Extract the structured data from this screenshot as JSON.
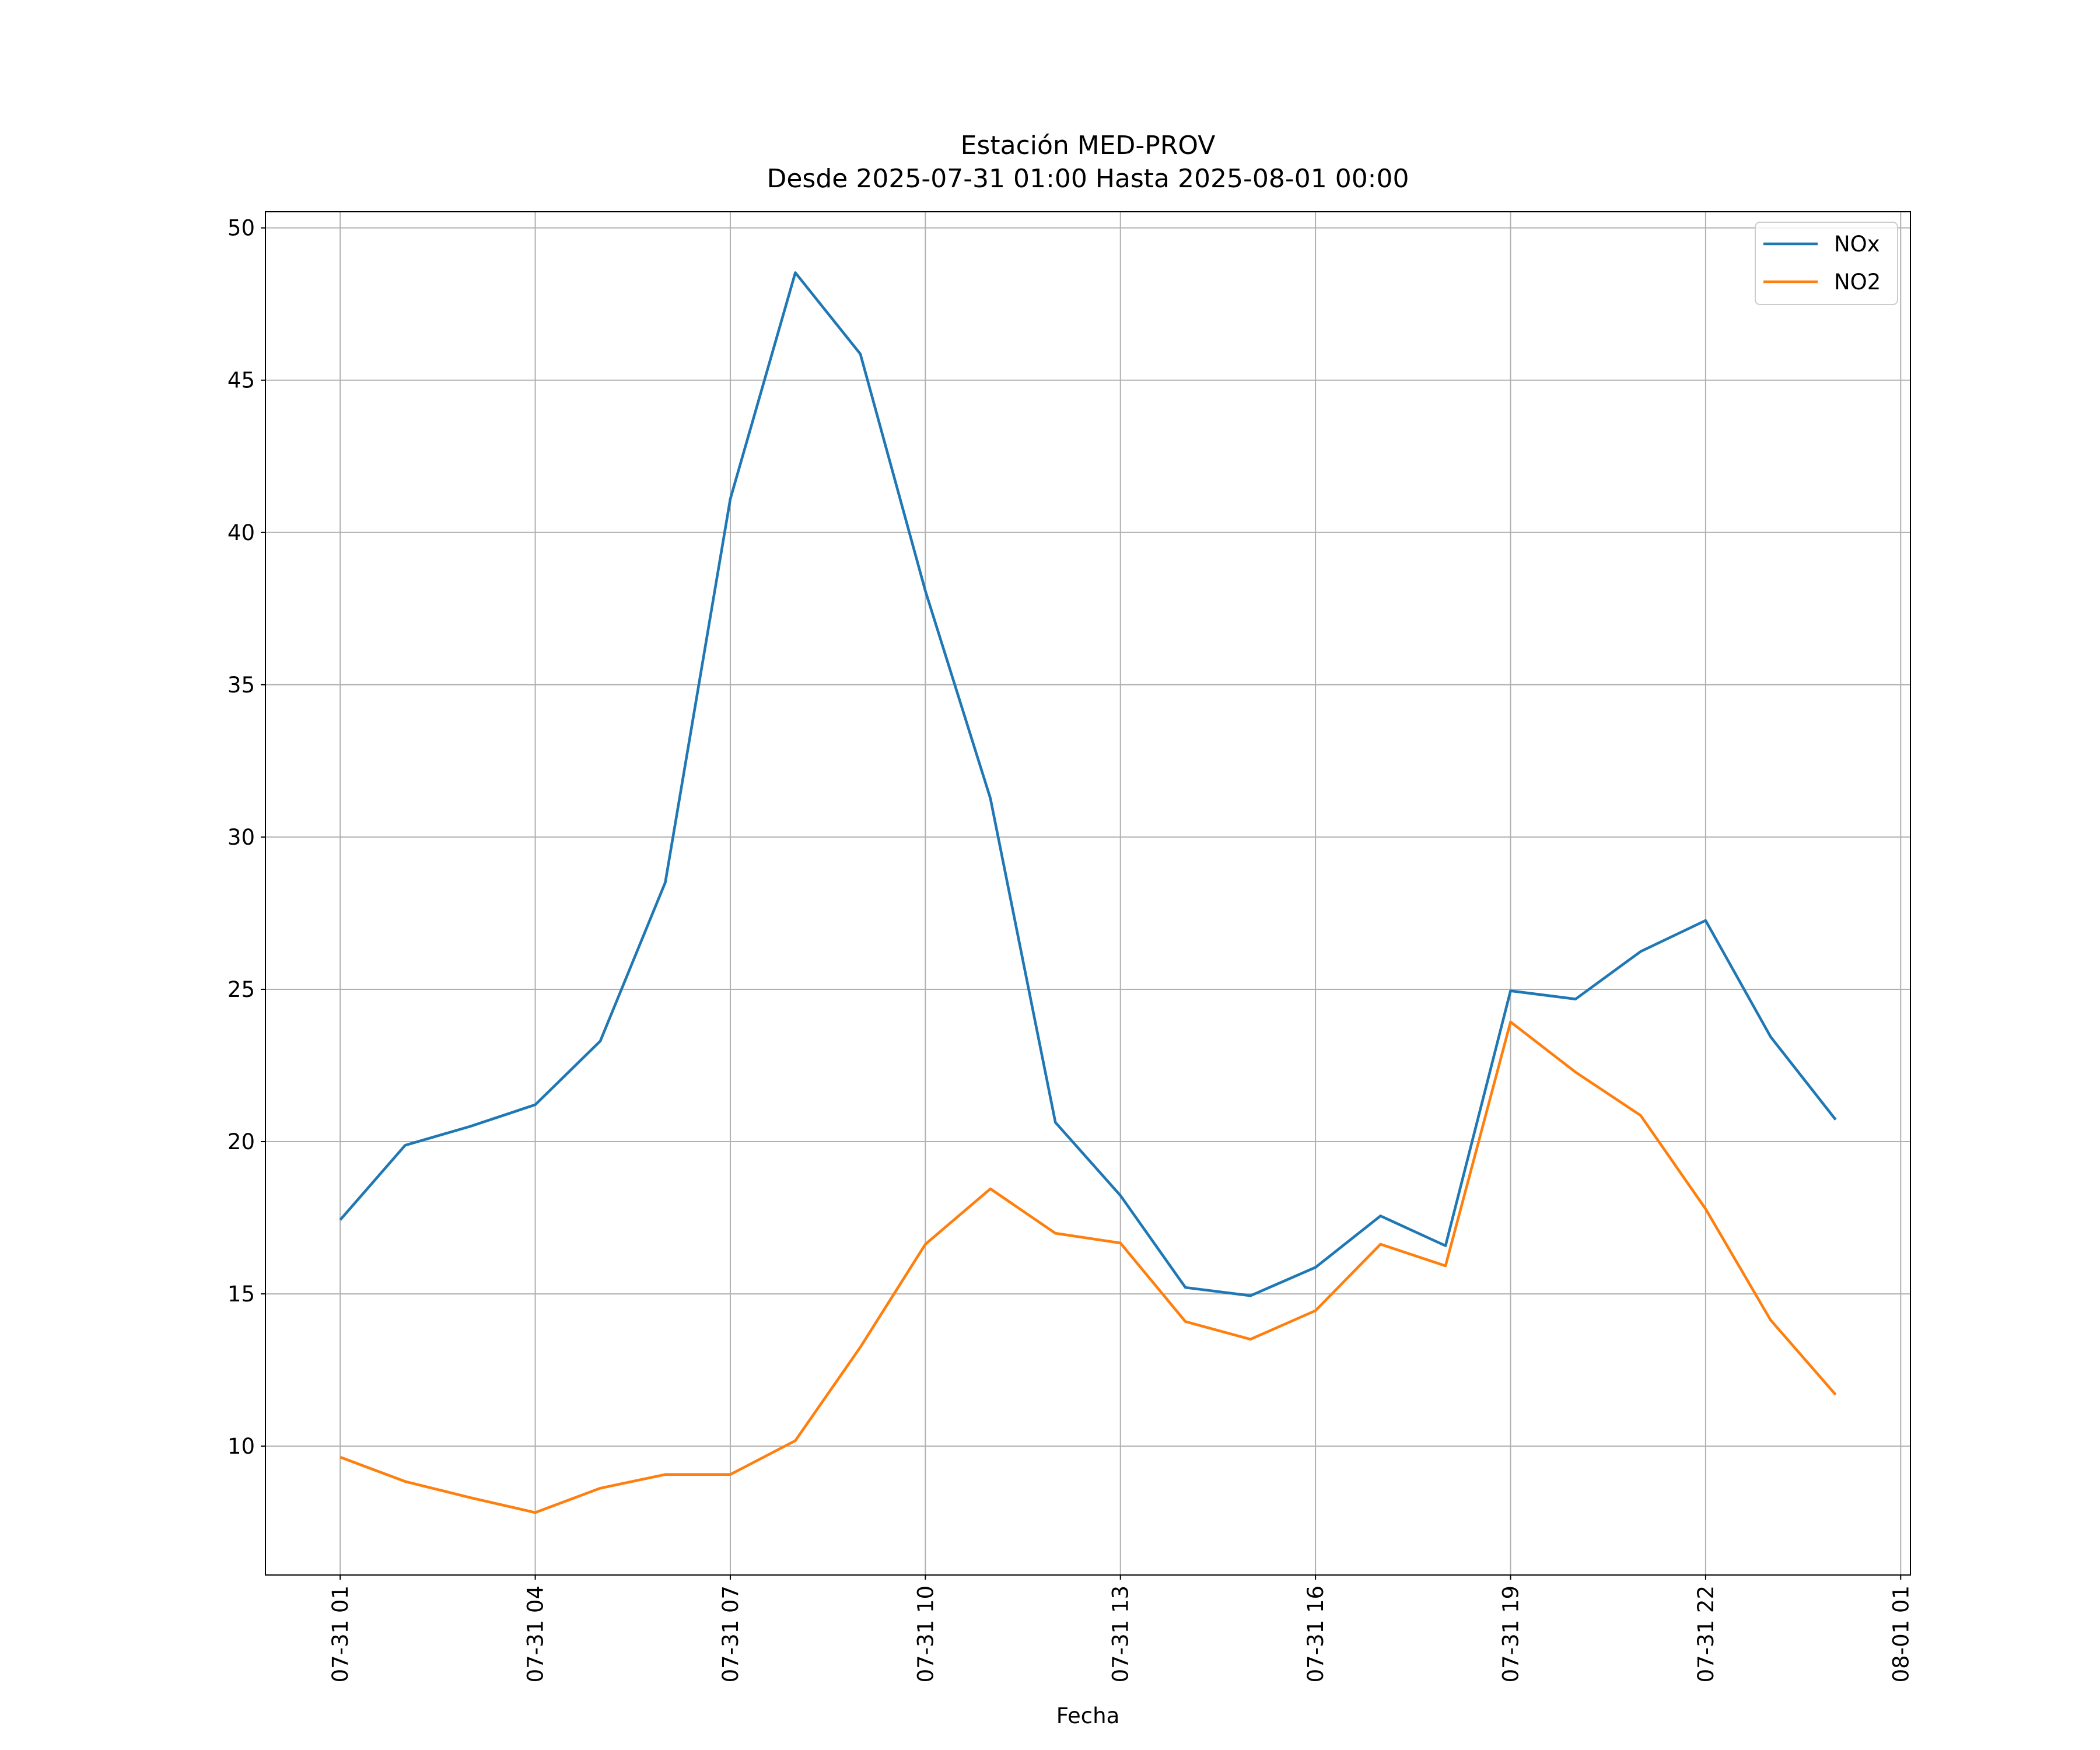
{
  "chart_data": {
    "type": "line",
    "title": "Estación MED-PROV",
    "subtitle": "Desde 2025-07-31 01:00 Hasta 2025-08-01 00:00",
    "x_label": "Fecha",
    "x": [
      "07-31 01",
      "07-31 02",
      "07-31 03",
      "07-31 04",
      "07-31 05",
      "07-31 06",
      "07-31 07",
      "07-31 08",
      "07-31 09",
      "07-31 10",
      "07-31 11",
      "07-31 12",
      "07-31 13",
      "07-31 14",
      "07-31 15",
      "07-31 16",
      "07-31 17",
      "07-31 18",
      "07-31 19",
      "07-31 20",
      "07-31 21",
      "07-31 22",
      "07-31 23",
      "08-01 00"
    ],
    "series": [
      {
        "name": "NOx",
        "color": "#1f77b4",
        "values": [
          17.43,
          19.88,
          20.5,
          21.21,
          23.3,
          28.51,
          41.1,
          48.53,
          45.86,
          38.08,
          31.27,
          20.63,
          18.23,
          15.21,
          14.94,
          15.87,
          17.56,
          16.58,
          24.95,
          24.68,
          26.24,
          27.26,
          23.44,
          20.72
        ]
      },
      {
        "name": "NO2",
        "color": "#ff7f0e",
        "values": [
          9.64,
          8.84,
          8.31,
          7.82,
          8.62,
          9.07,
          9.07,
          10.18,
          13.25,
          16.63,
          18.45,
          16.99,
          16.67,
          14.09,
          13.51,
          14.45,
          16.63,
          15.92,
          23.93,
          22.28,
          20.86,
          17.79,
          14.14,
          11.69
        ]
      }
    ],
    "xlim": [
      "07-30 23:51",
      "08-01 01:09"
    ],
    "xticks": [
      "07-31 01",
      "07-31 04",
      "07-31 07",
      "07-31 10",
      "07-31 13",
      "07-31 16",
      "07-31 19",
      "07-31 22",
      "08-01 01"
    ],
    "ylim": [
      5.77,
      50.53
    ],
    "yticks": [
      10,
      15,
      20,
      25,
      30,
      35,
      40,
      45,
      50
    ],
    "grid": true,
    "legend": "upper right"
  }
}
